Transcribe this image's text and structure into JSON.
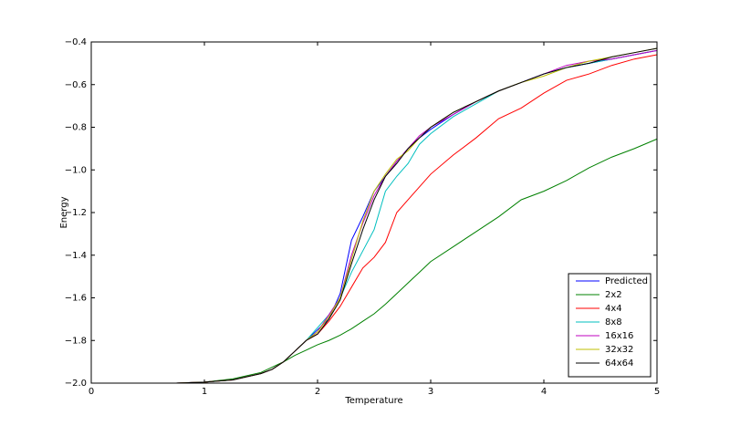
{
  "chart_data": {
    "type": "line",
    "xlabel": "Temperature",
    "ylabel": "Energy",
    "x": [
      0.25,
      0.5,
      0.75,
      1.0,
      1.25,
      1.5,
      1.6,
      1.7,
      1.8,
      1.9,
      2.0,
      2.1,
      2.2,
      2.3,
      2.4,
      2.5,
      2.6,
      2.7,
      2.8,
      2.9,
      3.0,
      3.2,
      3.4,
      3.6,
      3.8,
      4.0,
      4.2,
      4.4,
      4.6,
      4.8,
      5.0
    ],
    "series": [
      {
        "name": "Predicted",
        "color": "#0000ff",
        "values": [
          -2.0,
          -2.0,
          -2.0,
          -1.995,
          -1.985,
          -1.955,
          -1.935,
          -1.9,
          -1.85,
          -1.8,
          -1.75,
          -1.7,
          -1.58,
          -1.33,
          -1.22,
          -1.1,
          -1.03,
          -0.96,
          -0.9,
          -0.85,
          -0.81,
          -0.74,
          -0.68,
          -0.63,
          -0.59,
          -0.55,
          -0.52,
          -0.5,
          -0.48,
          -0.46,
          -0.44
        ]
      },
      {
        "name": "2x2",
        "color": "#008000",
        "values": [
          -2.0,
          -2.0,
          -2.0,
          -1.995,
          -1.98,
          -1.95,
          -1.925,
          -1.9,
          -1.87,
          -1.845,
          -1.82,
          -1.8,
          -1.775,
          -1.745,
          -1.71,
          -1.675,
          -1.63,
          -1.58,
          -1.53,
          -1.48,
          -1.43,
          -1.36,
          -1.29,
          -1.22,
          -1.14,
          -1.1,
          -1.05,
          -0.99,
          -0.94,
          -0.9,
          -0.855
        ]
      },
      {
        "name": "4x4",
        "color": "#ff0000",
        "values": [
          -2.0,
          -2.0,
          -2.0,
          -1.995,
          -1.985,
          -1.955,
          -1.935,
          -1.9,
          -1.85,
          -1.8,
          -1.77,
          -1.71,
          -1.64,
          -1.55,
          -1.46,
          -1.41,
          -1.34,
          -1.2,
          -1.14,
          -1.08,
          -1.02,
          -0.93,
          -0.85,
          -0.76,
          -0.71,
          -0.64,
          -0.58,
          -0.55,
          -0.51,
          -0.48,
          -0.46
        ]
      },
      {
        "name": "8x8",
        "color": "#00bfbf",
        "values": [
          -2.0,
          -2.0,
          -2.0,
          -1.995,
          -1.985,
          -1.955,
          -1.935,
          -1.9,
          -1.85,
          -1.8,
          -1.74,
          -1.68,
          -1.6,
          -1.48,
          -1.38,
          -1.28,
          -1.1,
          -1.03,
          -0.97,
          -0.88,
          -0.83,
          -0.75,
          -0.69,
          -0.63,
          -0.59,
          -0.55,
          -0.52,
          -0.5,
          -0.48,
          -0.46,
          -0.44
        ]
      },
      {
        "name": "16x16",
        "color": "#bf00bf",
        "values": [
          -2.0,
          -2.0,
          -2.0,
          -1.995,
          -1.985,
          -1.955,
          -1.935,
          -1.9,
          -1.85,
          -1.8,
          -1.76,
          -1.68,
          -1.6,
          -1.4,
          -1.25,
          -1.12,
          -1.03,
          -0.96,
          -0.9,
          -0.84,
          -0.8,
          -0.74,
          -0.68,
          -0.63,
          -0.59,
          -0.55,
          -0.51,
          -0.49,
          -0.48,
          -0.46,
          -0.44
        ]
      },
      {
        "name": "32x32",
        "color": "#bfbf00",
        "values": [
          -2.0,
          -2.0,
          -2.0,
          -1.995,
          -1.985,
          -1.955,
          -1.935,
          -1.9,
          -1.85,
          -1.8,
          -1.76,
          -1.69,
          -1.6,
          -1.42,
          -1.24,
          -1.1,
          -1.02,
          -0.95,
          -0.91,
          -0.85,
          -0.8,
          -0.73,
          -0.68,
          -0.63,
          -0.59,
          -0.56,
          -0.52,
          -0.49,
          -0.47,
          -0.45,
          -0.43
        ]
      },
      {
        "name": "64x64",
        "color": "#000000",
        "values": [
          -2.0,
          -2.0,
          -2.0,
          -1.995,
          -1.985,
          -1.955,
          -1.935,
          -1.9,
          -1.85,
          -1.8,
          -1.77,
          -1.7,
          -1.61,
          -1.44,
          -1.28,
          -1.14,
          -1.03,
          -0.97,
          -0.9,
          -0.85,
          -0.8,
          -0.73,
          -0.68,
          -0.63,
          -0.59,
          -0.55,
          -0.52,
          -0.5,
          -0.47,
          -0.45,
          -0.43
        ]
      }
    ],
    "xlim": [
      0,
      5
    ],
    "xticks": [
      0,
      1,
      2,
      3,
      4,
      5
    ],
    "ylim": [
      -2.0,
      -0.4
    ],
    "yticks": [
      {
        "value": -2.0,
        "label": "−2.0"
      },
      {
        "value": -1.8,
        "label": "−1.8"
      },
      {
        "value": -1.6,
        "label": "−1.6"
      },
      {
        "value": -1.4,
        "label": "−1.4"
      },
      {
        "value": -1.2,
        "label": "−1.2"
      },
      {
        "value": -1.0,
        "label": "−1.0"
      },
      {
        "value": -0.8,
        "label": "−0.8"
      },
      {
        "value": -0.6,
        "label": "−0.6"
      },
      {
        "value": -0.4,
        "label": "−0.4"
      }
    ],
    "grid": false,
    "legend": "lower right"
  }
}
